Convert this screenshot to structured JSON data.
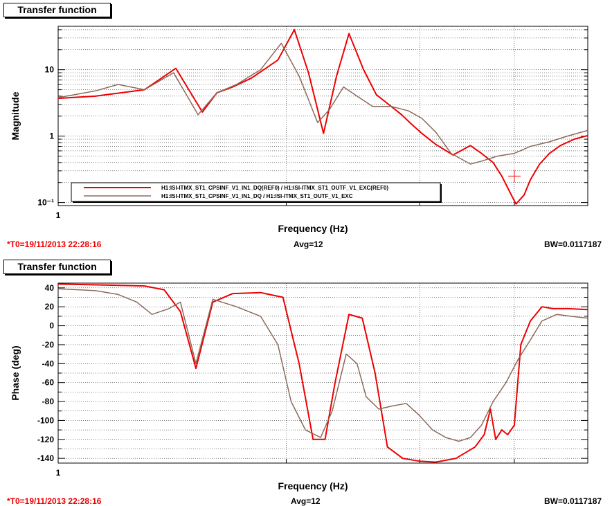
{
  "panels": [
    {
      "title": "Transfer function",
      "footer": {
        "t0": "*T0=19/11/2013 22:28:16",
        "avg": "Avg=12",
        "bw": "BW=0.0117187"
      }
    },
    {
      "title": "Transfer function",
      "footer": {
        "t0": "*T0=19/11/2013 22:28:16",
        "avg": "Avg=12",
        "bw": "BW=0.0117187"
      }
    }
  ],
  "colors": {
    "ref": "#ee0000",
    "live": "#8b6a5a",
    "axis": "#000000",
    "grid": "#000000"
  },
  "chart_data": [
    {
      "type": "line",
      "xlabel": "Frequency (Hz)",
      "ylabel": "Magnitude",
      "xscale": "log",
      "yscale": "log",
      "xlim": [
        1,
        5
      ],
      "ylim": [
        0.09,
        45
      ],
      "xticklabels": [
        "1"
      ],
      "yticks": [
        0.1,
        1,
        10
      ],
      "yticklabels": [
        "10⁻¹",
        "1",
        "10"
      ],
      "grid": true,
      "legend": {
        "placement": "bottom-left",
        "entries": [
          "H1:ISI-ITMX_ST1_CPSINF_V1_IN1_DQ(REF0) / H1:ISI-ITMX_ST1_OUTF_V1_EXC(REF0)",
          "H1:ISI-ITMX_ST1_CPSINF_V1_IN1_DQ / H1:ISI-ITMX_ST1_OUTF_V1_EXC"
        ]
      },
      "series": [
        {
          "name": "H1:ISI-ITMX_ST1_CPSINF_V1_IN1_DQ(REF0) / H1:ISI-ITMX_ST1_OUTF_V1_EXC(REF0)",
          "x": [
            1,
            1.12,
            1.3,
            1.43,
            1.55,
            1.62,
            1.7,
            1.8,
            1.95,
            2.05,
            2.14,
            2.24,
            2.33,
            2.42,
            2.53,
            2.63,
            2.73,
            2.84,
            2.92,
            3.02,
            3.15,
            3.32,
            3.5,
            3.62,
            3.75,
            3.85,
            3.95,
            4.02,
            4.12,
            4.2,
            4.32,
            4.45,
            4.6,
            4.8,
            5
          ],
          "y": [
            3.7,
            4.0,
            5.0,
            10.5,
            2.3,
            4.5,
            5.5,
            7.5,
            14,
            40,
            9,
            1.1,
            8,
            35,
            10,
            4.2,
            3.0,
            2.1,
            1.55,
            1.1,
            0.75,
            0.52,
            0.72,
            0.55,
            0.4,
            0.25,
            0.14,
            0.095,
            0.13,
            0.22,
            0.38,
            0.55,
            0.72,
            0.9,
            1.02
          ]
        },
        {
          "name": "H1:ISI-ITMX_ST1_CPSINF_V1_IN1_DQ / H1:ISI-ITMX_ST1_OUTF_V1_EXC",
          "x": [
            1,
            1.12,
            1.2,
            1.3,
            1.42,
            1.53,
            1.62,
            1.72,
            1.85,
            1.97,
            2.08,
            2.2,
            2.28,
            2.38,
            2.48,
            2.6,
            2.75,
            2.9,
            3.02,
            3.15,
            3.3,
            3.5,
            3.62,
            3.8,
            4.0,
            4.2,
            4.45,
            4.7,
            5
          ],
          "y": [
            3.8,
            4.8,
            6.0,
            5.0,
            9.0,
            2.1,
            4.5,
            6.0,
            10,
            25,
            8,
            1.6,
            2.5,
            5.5,
            4.0,
            2.8,
            2.8,
            2.4,
            1.85,
            1.15,
            0.55,
            0.38,
            0.42,
            0.5,
            0.55,
            0.7,
            0.82,
            1.0,
            1.22
          ]
        }
      ]
    },
    {
      "type": "line",
      "xlabel": "Frequency (Hz)",
      "ylabel": "Phase (deg)",
      "xscale": "log",
      "xlim": [
        1,
        5
      ],
      "ylim": [
        -145,
        45
      ],
      "xticklabels": [
        "1"
      ],
      "yticks": [
        40,
        20,
        0,
        -20,
        -40,
        -60,
        -80,
        -100,
        -120,
        -140
      ],
      "grid": true,
      "series": [
        {
          "name": "H1:ISI-ITMX_ST1_CPSINF_V1_IN1_DQ(REF0) / H1:ISI-ITMX_ST1_OUTF_V1_EXC(REF0)",
          "x": [
            1,
            1.15,
            1.3,
            1.38,
            1.45,
            1.52,
            1.6,
            1.7,
            1.85,
            1.98,
            2.08,
            2.17,
            2.25,
            2.32,
            2.42,
            2.52,
            2.62,
            2.72,
            2.85,
            3.0,
            3.15,
            3.35,
            3.55,
            3.65,
            3.72,
            3.78,
            3.85,
            3.92,
            4.0,
            4.08,
            4.2,
            4.35,
            4.5,
            4.7,
            5
          ],
          "y": [
            44,
            43,
            42,
            38,
            15,
            -45,
            25,
            34,
            35,
            30,
            -40,
            -120,
            -120,
            -60,
            12,
            8,
            -50,
            -128,
            -140,
            -143,
            -144,
            -140,
            -128,
            -115,
            -88,
            -120,
            -110,
            -115,
            -105,
            -20,
            5,
            20,
            18,
            18,
            17
          ]
        },
        {
          "name": "H1:ISI-ITMX_ST1_CPSINF_V1_IN1_DQ / H1:ISI-ITMX_ST1_OUTF_V1_EXC",
          "x": [
            1,
            1.12,
            1.2,
            1.27,
            1.33,
            1.4,
            1.45,
            1.52,
            1.6,
            1.72,
            1.85,
            1.95,
            2.03,
            2.12,
            2.22,
            2.3,
            2.4,
            2.48,
            2.55,
            2.65,
            2.75,
            2.88,
            3.0,
            3.12,
            3.25,
            3.38,
            3.5,
            3.62,
            3.75,
            3.9,
            4.05,
            4.2,
            4.35,
            4.55,
            4.75,
            5
          ],
          "y": [
            39,
            37,
            33,
            25,
            12,
            18,
            25,
            -40,
            28,
            20,
            10,
            -20,
            -80,
            -110,
            -118,
            -90,
            -30,
            -40,
            -75,
            -88,
            -85,
            -82,
            -95,
            -110,
            -118,
            -122,
            -118,
            -105,
            -80,
            -60,
            -35,
            -15,
            5,
            12,
            10,
            8
          ]
        }
      ]
    }
  ]
}
